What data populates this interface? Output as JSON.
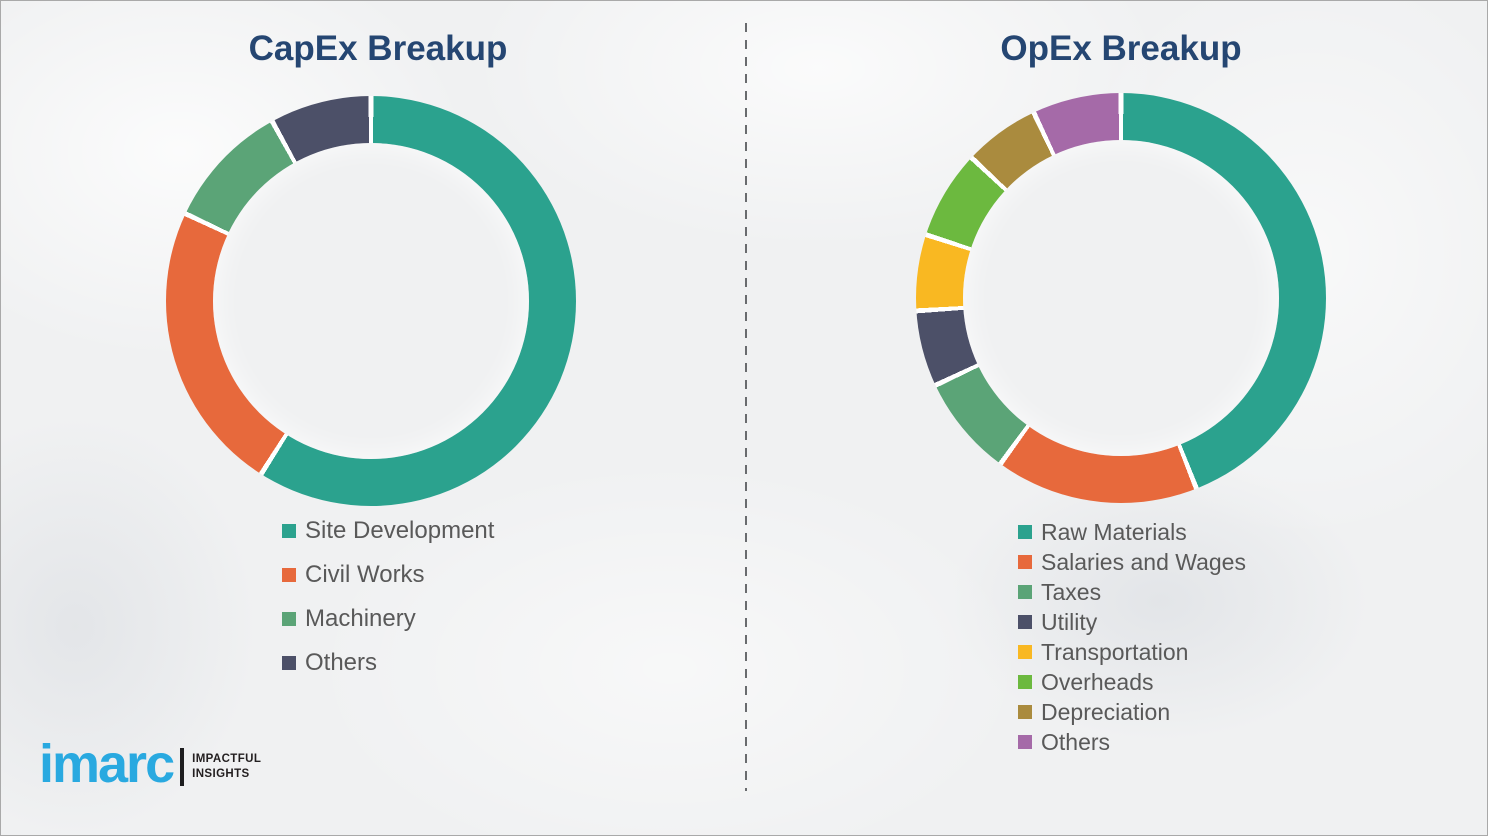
{
  "page": {
    "background_color": "#f0f1f2",
    "divider_color": "#696b6e",
    "title_color": "#254672",
    "legend_text_color": "#595959"
  },
  "chart_data": [
    {
      "type": "pie",
      "donut": true,
      "title": "CapEx Breakup",
      "categories": [
        "Site Development",
        "Civil Works",
        "Machinery",
        "Others"
      ],
      "values": [
        59,
        23,
        10,
        8
      ],
      "colors": [
        "#2ba28e",
        "#e7693c",
        "#5ba477",
        "#4c5068"
      ],
      "legend_position": "bottom-left",
      "value_unit": "percent-estimated"
    },
    {
      "type": "pie",
      "donut": true,
      "title": "OpEx Breakup",
      "categories": [
        "Raw Materials",
        "Salaries and Wages",
        "Taxes",
        "Utility",
        "Transportation",
        "Overheads",
        "Depreciation",
        "Others"
      ],
      "values": [
        44,
        16,
        8,
        6,
        6,
        7,
        6,
        7
      ],
      "colors": [
        "#2ba28e",
        "#e7693c",
        "#5ba477",
        "#4c5068",
        "#f9b822",
        "#6cb93f",
        "#aa8b3e",
        "#a56aa8"
      ],
      "legend_position": "bottom-left",
      "value_unit": "percent-estimated"
    }
  ],
  "logo": {
    "wordmark": "imarc",
    "tagline_line1": "IMPACTFUL",
    "tagline_line2": "INSIGHTS",
    "wordmark_color": "#29a9e0"
  }
}
